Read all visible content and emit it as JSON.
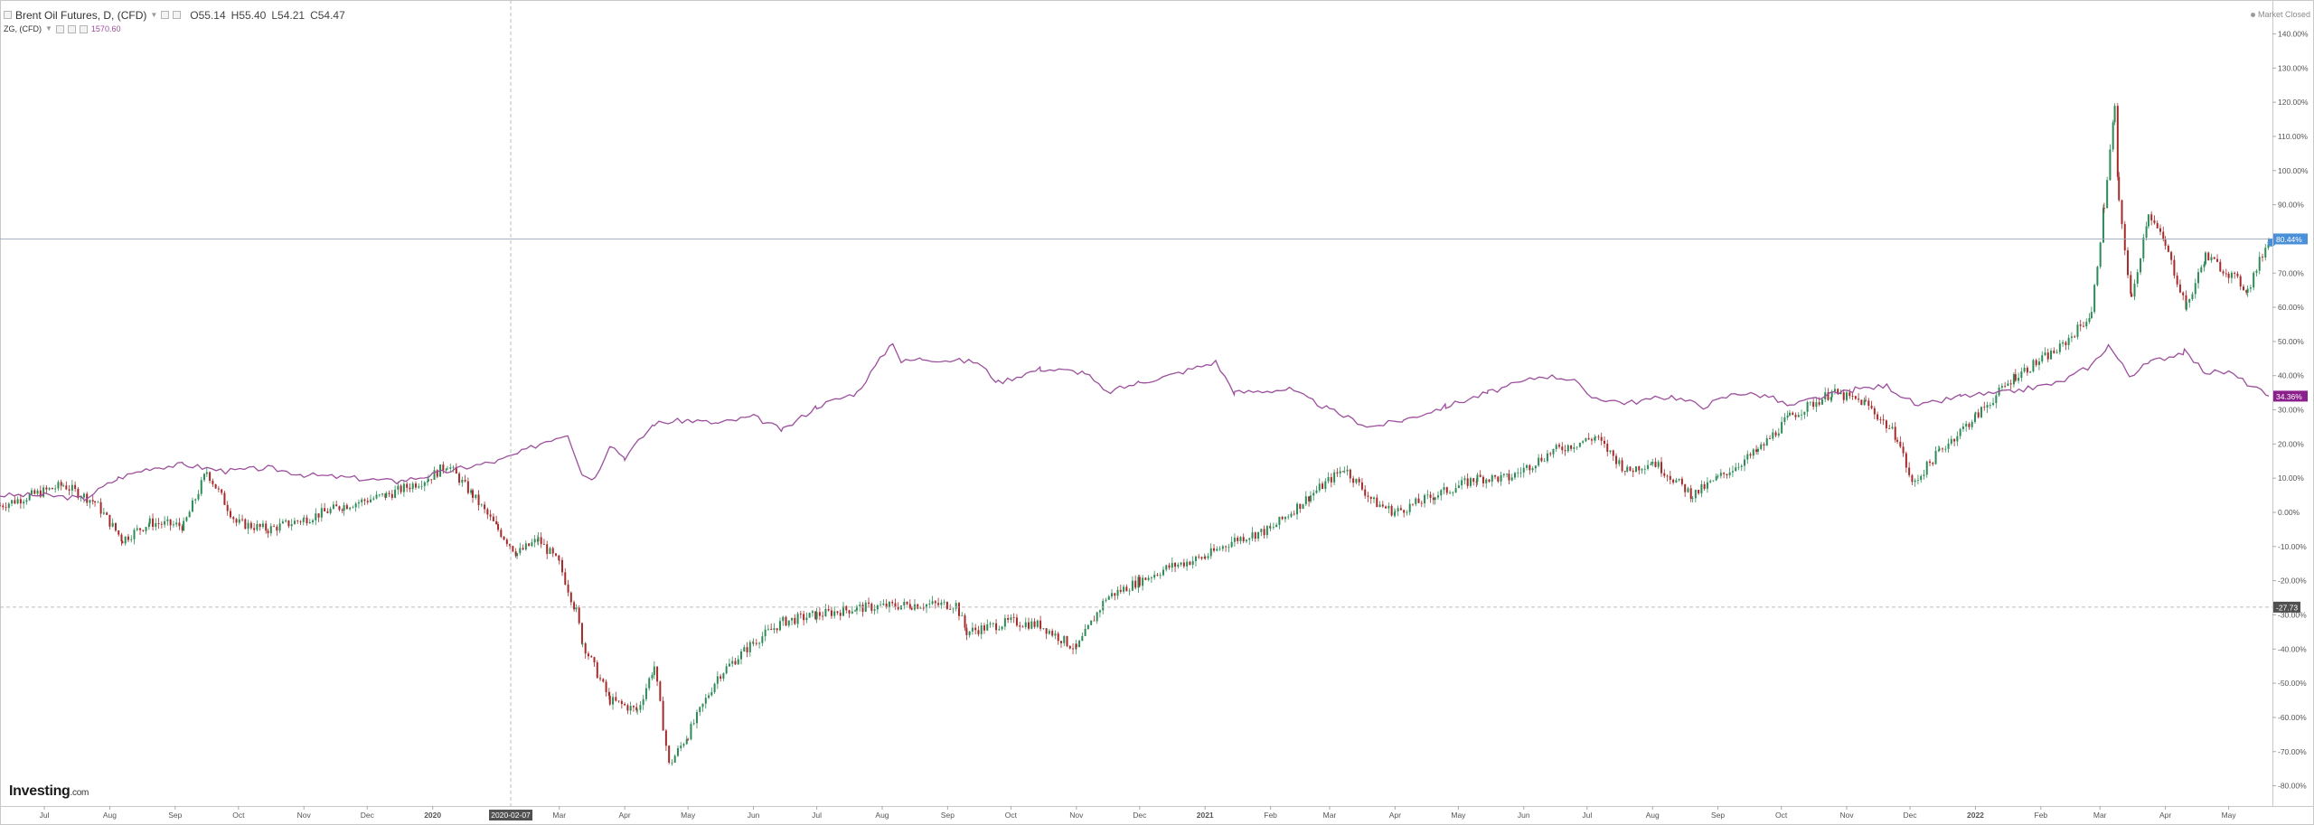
{
  "legend": {
    "main_symbol": "Brent Oil Futures, D, (CFD)",
    "ohlc": {
      "open": "O55.14",
      "high": "H55.40",
      "low": "L54.21",
      "close": "C54.47"
    },
    "compare_symbol": "ZG, (CFD)",
    "compare_value": "1570.60"
  },
  "status": {
    "market": "Market Closed"
  },
  "logo": {
    "brand": "Investing",
    "suffix": ".com"
  },
  "crosshair": {
    "date_label": "2020-02-07",
    "value_label": "-27.73"
  },
  "colors": {
    "up": "#2e8b57",
    "down": "#a52a2a",
    "compare": "#9c4f9c",
    "brent_tag": "#4a90d9",
    "compare_tag": "#8b1f8b",
    "crosshair_tag": "#505050"
  },
  "chart_data": {
    "type": "line",
    "ylabel": "",
    "ylim": [
      -80,
      140
    ],
    "y_scale": "percent change",
    "y_ticks": [
      "140.00%",
      "130.00%",
      "120.00%",
      "110.00%",
      "100.00%",
      "90.00%",
      "80.00%",
      "70.00%",
      "60.00%",
      "50.00%",
      "40.00%",
      "30.00%",
      "20.00%",
      "10.00%",
      "0.00%",
      "-10.00%",
      "-20.00%",
      "-30.00%",
      "-40.00%",
      "-50.00%",
      "-60.00%",
      "-70.00%",
      "-80.00%"
    ],
    "x_ticks": [
      "Jul",
      "Aug",
      "Sep",
      "Oct",
      "Nov",
      "Dec",
      "2020",
      "Mar",
      "Apr",
      "May",
      "Jun",
      "Jul",
      "Aug",
      "Sep",
      "Oct",
      "Nov",
      "Dec",
      "2021",
      "Feb",
      "Mar",
      "Apr",
      "May",
      "Jun",
      "Jul",
      "Aug",
      "Sep",
      "Oct",
      "Nov",
      "Dec",
      "2022",
      "Feb",
      "Mar",
      "Apr",
      "May"
    ],
    "x_tick_dates": [
      "2019-07-01",
      "2019-08-01",
      "2019-09-01",
      "2019-10-01",
      "2019-11-01",
      "2019-12-01",
      "2020-01-01",
      "2020-03-01",
      "2020-04-01",
      "2020-05-01",
      "2020-06-01",
      "2020-07-01",
      "2020-08-01",
      "2020-09-01",
      "2020-10-01",
      "2020-11-01",
      "2020-12-01",
      "2021-01-01",
      "2021-02-01",
      "2021-03-01",
      "2021-04-01",
      "2021-05-01",
      "2021-06-01",
      "2021-07-01",
      "2021-08-01",
      "2021-09-01",
      "2021-10-01",
      "2021-11-01",
      "2021-12-01",
      "2022-01-01",
      "2022-02-01",
      "2022-03-01",
      "2022-04-01",
      "2022-05-01"
    ],
    "x_range": [
      "2019-06-10",
      "2022-05-20"
    ],
    "series": [
      {
        "name": "Brent Oil Futures, D, (CFD)",
        "style": "candlestick",
        "last_value_label": "80.44%",
        "points": [
          [
            "2019-06-10",
            2
          ],
          [
            "2019-06-25",
            5
          ],
          [
            "2019-07-10",
            8
          ],
          [
            "2019-07-25",
            3
          ],
          [
            "2019-08-07",
            -8
          ],
          [
            "2019-08-20",
            -3
          ],
          [
            "2019-09-05",
            -4
          ],
          [
            "2019-09-16",
            12
          ],
          [
            "2019-09-30",
            -3
          ],
          [
            "2019-10-15",
            -5
          ],
          [
            "2019-11-01",
            -2
          ],
          [
            "2019-11-20",
            2
          ],
          [
            "2019-12-10",
            5
          ],
          [
            "2019-12-30",
            10
          ],
          [
            "2020-01-08",
            14
          ],
          [
            "2020-01-20",
            5
          ],
          [
            "2020-02-01",
            -5
          ],
          [
            "2020-02-10",
            -12
          ],
          [
            "2020-02-20",
            -8
          ],
          [
            "2020-03-01",
            -15
          ],
          [
            "2020-03-09",
            -29
          ],
          [
            "2020-03-12",
            -38
          ],
          [
            "2020-03-25",
            -55
          ],
          [
            "2020-04-07",
            -58
          ],
          [
            "2020-04-15",
            -45
          ],
          [
            "2020-04-22",
            -74
          ],
          [
            "2020-05-01",
            -65
          ],
          [
            "2020-05-15",
            -48
          ],
          [
            "2020-06-01",
            -38
          ],
          [
            "2020-06-15",
            -32
          ],
          [
            "2020-07-01",
            -30
          ],
          [
            "2020-07-20",
            -28
          ],
          [
            "2020-08-15",
            -27
          ],
          [
            "2020-09-05",
            -27
          ],
          [
            "2020-09-10",
            -35
          ],
          [
            "2020-10-01",
            -32
          ],
          [
            "2020-10-15",
            -33
          ],
          [
            "2020-11-01",
            -40
          ],
          [
            "2020-11-15",
            -25
          ],
          [
            "2020-12-01",
            -20
          ],
          [
            "2020-12-15",
            -16
          ],
          [
            "2021-01-01",
            -13
          ],
          [
            "2021-01-15",
            -8
          ],
          [
            "2021-02-01",
            -5
          ],
          [
            "2021-02-20",
            5
          ],
          [
            "2021-03-08",
            13
          ],
          [
            "2021-03-22",
            3
          ],
          [
            "2021-04-01",
            0
          ],
          [
            "2021-04-20",
            5
          ],
          [
            "2021-05-10",
            10
          ],
          [
            "2021-05-25",
            10
          ],
          [
            "2021-06-15",
            18
          ],
          [
            "2021-07-05",
            22
          ],
          [
            "2021-07-20",
            12
          ],
          [
            "2021-08-01",
            15
          ],
          [
            "2021-08-20",
            5
          ],
          [
            "2021-09-01",
            10
          ],
          [
            "2021-09-20",
            18
          ],
          [
            "2021-10-05",
            28
          ],
          [
            "2021-10-25",
            35
          ],
          [
            "2021-11-10",
            32
          ],
          [
            "2021-11-25",
            22
          ],
          [
            "2021-12-02",
            8
          ],
          [
            "2021-12-15",
            18
          ],
          [
            "2022-01-01",
            28
          ],
          [
            "2022-01-20",
            40
          ],
          [
            "2022-02-10",
            48
          ],
          [
            "2022-02-25",
            58
          ],
          [
            "2022-03-03",
            90
          ],
          [
            "2022-03-08",
            118
          ],
          [
            "2022-03-10",
            90
          ],
          [
            "2022-03-16",
            62
          ],
          [
            "2022-03-24",
            88
          ],
          [
            "2022-04-01",
            78
          ],
          [
            "2022-04-11",
            60
          ],
          [
            "2022-04-20",
            75
          ],
          [
            "2022-05-01",
            70
          ],
          [
            "2022-05-10",
            65
          ],
          [
            "2022-05-20",
            80
          ]
        ]
      },
      {
        "name": "ZG, (CFD)",
        "style": "line",
        "last_value_label": "34.36%",
        "points": [
          [
            "2019-06-10",
            5
          ],
          [
            "2019-07-01",
            5
          ],
          [
            "2019-07-20",
            4
          ],
          [
            "2019-08-05",
            10
          ],
          [
            "2019-08-20",
            13
          ],
          [
            "2019-09-05",
            14
          ],
          [
            "2019-09-25",
            12
          ],
          [
            "2019-10-15",
            13
          ],
          [
            "2019-11-01",
            11
          ],
          [
            "2019-11-25",
            10
          ],
          [
            "2019-12-15",
            9
          ],
          [
            "2020-01-01",
            11
          ],
          [
            "2020-01-15",
            13
          ],
          [
            "2020-02-01",
            15
          ],
          [
            "2020-02-10",
            17
          ],
          [
            "2020-02-24",
            21
          ],
          [
            "2020-03-05",
            23
          ],
          [
            "2020-03-12",
            11
          ],
          [
            "2020-03-18",
            10
          ],
          [
            "2020-03-25",
            20
          ],
          [
            "2020-04-01",
            16
          ],
          [
            "2020-04-15",
            26
          ],
          [
            "2020-05-01",
            27
          ],
          [
            "2020-05-15",
            26
          ],
          [
            "2020-06-01",
            28
          ],
          [
            "2020-06-15",
            24
          ],
          [
            "2020-07-01",
            31
          ],
          [
            "2020-07-20",
            35
          ],
          [
            "2020-08-06",
            50
          ],
          [
            "2020-08-10",
            44
          ],
          [
            "2020-08-20",
            45
          ],
          [
            "2020-09-15",
            44
          ],
          [
            "2020-09-25",
            38
          ],
          [
            "2020-10-15",
            42
          ],
          [
            "2020-11-05",
            41
          ],
          [
            "2020-11-15",
            35
          ],
          [
            "2020-12-01",
            38
          ],
          [
            "2020-12-15",
            40
          ],
          [
            "2021-01-06",
            44
          ],
          [
            "2021-01-15",
            35
          ],
          [
            "2021-02-10",
            36
          ],
          [
            "2021-03-01",
            30
          ],
          [
            "2021-03-20",
            25
          ],
          [
            "2021-04-05",
            27
          ],
          [
            "2021-04-25",
            31
          ],
          [
            "2021-05-15",
            35
          ],
          [
            "2021-06-10",
            40
          ],
          [
            "2021-06-25",
            39
          ],
          [
            "2021-07-01",
            34
          ],
          [
            "2021-07-20",
            32
          ],
          [
            "2021-08-10",
            34
          ],
          [
            "2021-08-25",
            31
          ],
          [
            "2021-09-10",
            35
          ],
          [
            "2021-09-25",
            34
          ],
          [
            "2021-10-05",
            31
          ],
          [
            "2021-10-15",
            33
          ],
          [
            "2021-11-05",
            36
          ],
          [
            "2021-11-20",
            37
          ],
          [
            "2021-12-05",
            31
          ],
          [
            "2021-12-25",
            34
          ],
          [
            "2022-01-15",
            35
          ],
          [
            "2022-02-10",
            38
          ],
          [
            "2022-02-25",
            43
          ],
          [
            "2022-03-05",
            49
          ],
          [
            "2022-03-15",
            40
          ],
          [
            "2022-03-25",
            44
          ],
          [
            "2022-04-10",
            47
          ],
          [
            "2022-04-20",
            41
          ],
          [
            "2022-05-01",
            41
          ],
          [
            "2022-05-20",
            34
          ]
        ]
      }
    ],
    "grid": false,
    "legend_position": "top-left"
  }
}
